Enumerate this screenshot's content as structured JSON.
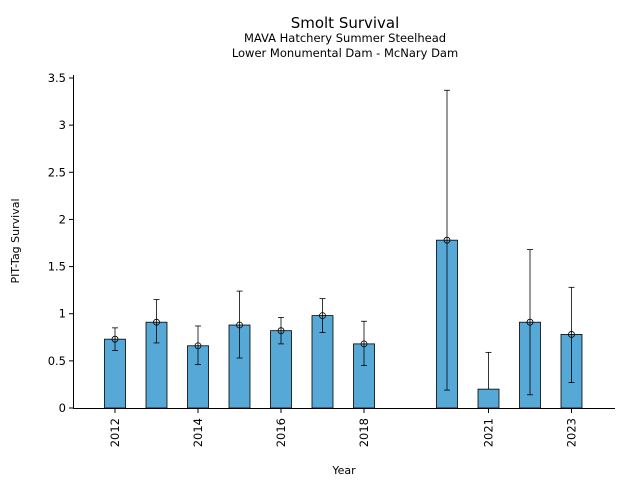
{
  "chart_data": {
    "type": "bar",
    "title": "Smolt Survival",
    "subtitle_lines": [
      "MAVA Hatchery Summer Steelhead",
      "Lower Monumental Dam - McNary Dam"
    ],
    "xlabel": "Year",
    "ylabel": "PIT-Tag Survival",
    "xlim": [
      2011,
      2024
    ],
    "ylim": [
      0,
      3.5
    ],
    "yticks": [
      0,
      0.5,
      1,
      1.5,
      2,
      2.5,
      3,
      3.5
    ],
    "xticks": [
      2012,
      2014,
      2016,
      2018,
      2021,
      2023
    ],
    "grid": false,
    "bar_color": "#56a9d6",
    "x": [
      2012,
      2013,
      2014,
      2015,
      2016,
      2017,
      2018,
      2020,
      2021,
      2022,
      2023
    ],
    "values": [
      0.73,
      0.91,
      0.66,
      0.88,
      0.82,
      0.98,
      0.68,
      1.78,
      0.2,
      0.91,
      0.78
    ],
    "err_low": [
      0.61,
      0.69,
      0.46,
      0.53,
      0.68,
      0.8,
      0.45,
      0.19,
      null,
      0.14,
      0.27
    ],
    "err_high": [
      0.85,
      1.15,
      0.87,
      1.24,
      0.96,
      1.16,
      0.92,
      3.37,
      0.59,
      1.68,
      1.28
    ]
  }
}
